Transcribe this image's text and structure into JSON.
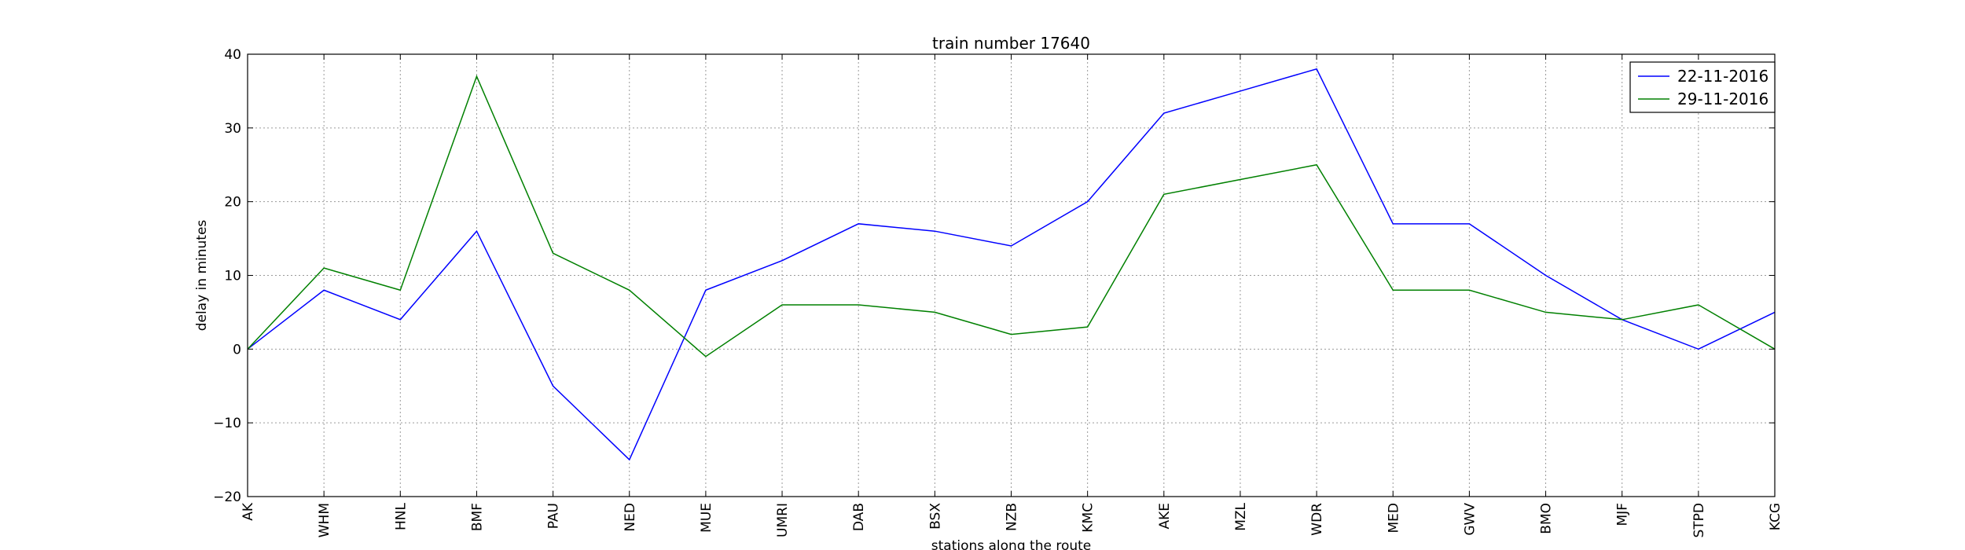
{
  "chart_data": {
    "type": "line",
    "title": "train number 17640",
    "xlabel": "stations along the route",
    "ylabel": "delay in minutes",
    "ylim": [
      -20,
      40
    ],
    "yticks": [
      -20,
      -10,
      0,
      10,
      20,
      30,
      40
    ],
    "ytick_labels": [
      "−20",
      "−10",
      "0",
      "10",
      "20",
      "30",
      "40"
    ],
    "grid": true,
    "legend_position": "top-right",
    "categories": [
      "AK",
      "WHM",
      "HNL",
      "BMF",
      "PAU",
      "NED",
      "MUE",
      "UMRI",
      "DAB",
      "BSX",
      "NZB",
      "KMC",
      "AKE",
      "MZL",
      "WDR",
      "MED",
      "GWV",
      "BMO",
      "MJF",
      "STPD",
      "KCG"
    ],
    "series": [
      {
        "name": "22-11-2016",
        "color": "#0000ff",
        "values": [
          0,
          8,
          4,
          16,
          -5,
          -15,
          8,
          12,
          17,
          16,
          14,
          20,
          32,
          35,
          38,
          17,
          17,
          10,
          4,
          0,
          5
        ]
      },
      {
        "name": "29-11-2016",
        "color": "#008000",
        "values": [
          0,
          11,
          8,
          37,
          13,
          8,
          -1,
          6,
          6,
          5,
          2,
          3,
          21,
          23,
          25,
          8,
          8,
          5,
          4,
          6,
          0
        ]
      }
    ]
  }
}
